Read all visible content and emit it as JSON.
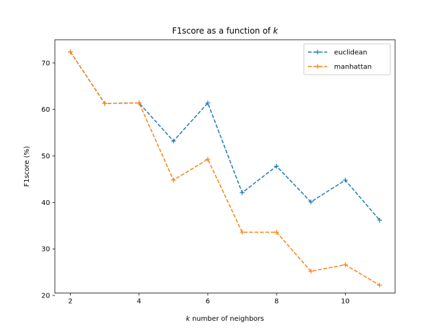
{
  "chart_data": {
    "type": "line",
    "title_prefix": "F1score as a function of ",
    "title_var": "k",
    "xlabel_var": "k",
    "xlabel_rest": " number of neighbors",
    "ylabel": "F1score (%)",
    "x": [
      2,
      3,
      4,
      5,
      6,
      7,
      8,
      9,
      10,
      11
    ],
    "xticks": [
      2,
      4,
      6,
      8,
      10
    ],
    "yticks": [
      20,
      30,
      40,
      50,
      60,
      70
    ],
    "xlim": [
      1.55,
      11.45
    ],
    "ylim": [
      20.5,
      75.0
    ],
    "legend_position": "top-right",
    "series": [
      {
        "name": "euclidean",
        "color": "#1f77b4",
        "values": [
          72.4,
          61.3,
          61.4,
          53.2,
          61.4,
          42.1,
          47.8,
          40.1,
          44.8,
          36.2
        ]
      },
      {
        "name": "manhattan",
        "color": "#ff7f0e",
        "values": [
          72.4,
          61.3,
          61.4,
          44.8,
          49.3,
          33.6,
          33.6,
          25.2,
          26.6,
          22.2
        ]
      }
    ]
  }
}
